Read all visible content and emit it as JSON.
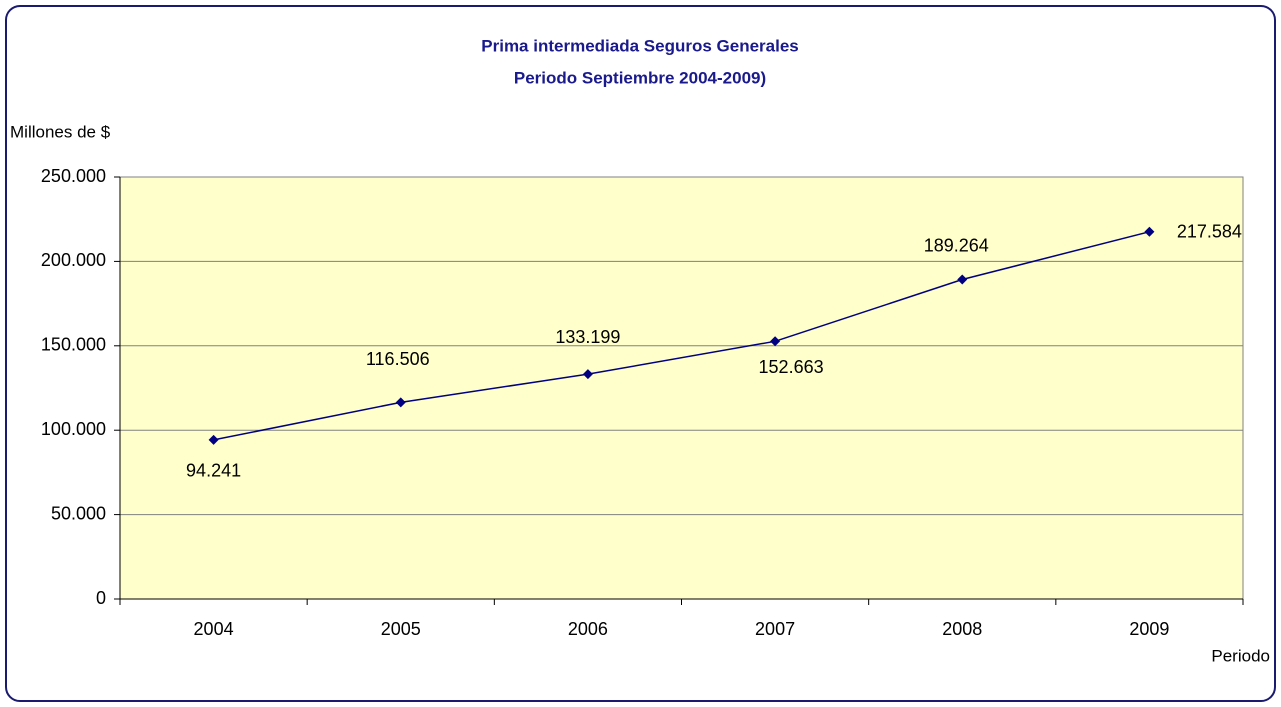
{
  "chart_data": {
    "type": "line",
    "title": "Prima intermediada  Seguros Generales",
    "subtitle": "Periodo Septiembre 2004-2009)",
    "y_label": "Millones de $",
    "x_label": "Periodo",
    "categories": [
      "2004",
      "2005",
      "2006",
      "2007",
      "2008",
      "2009"
    ],
    "values": [
      94241,
      116506,
      133199,
      152663,
      189264,
      217584
    ],
    "value_labels": [
      "94.241",
      "116.506",
      "133.199",
      "152.663",
      "189.264",
      "217.584"
    ],
    "color": "#000080",
    "ylim": [
      0,
      250000
    ],
    "yticks": [
      0,
      {
        "value": 50000,
        "label": "50.000"
      },
      {
        "value": 100000,
        "label": "100.000"
      },
      {
        "value": 150000,
        "label": "150.000"
      },
      {
        "value": 200000,
        "label": "200.000"
      },
      {
        "value": 250000,
        "label": "250.000"
      }
    ],
    "grid": true
  }
}
